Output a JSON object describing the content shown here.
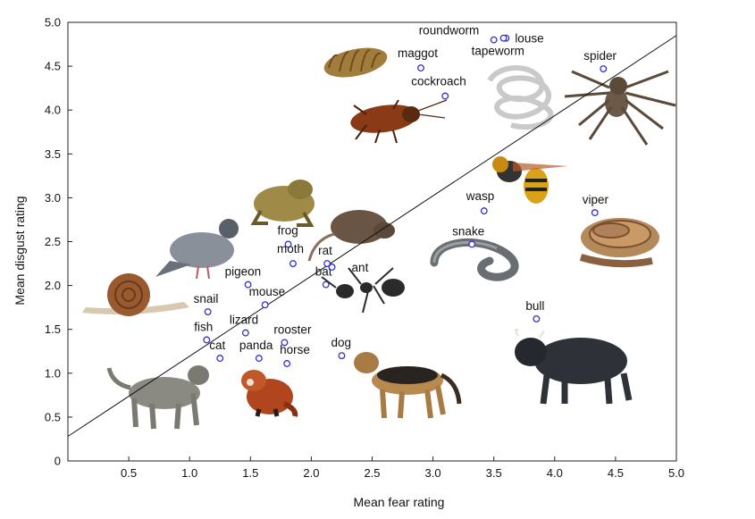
{
  "chart_data": {
    "type": "scatter",
    "title": "",
    "xlabel": "Mean fear rating",
    "ylabel": "Mean disgust rating",
    "xlim": [
      0,
      5
    ],
    "ylim": [
      0,
      5
    ],
    "x_ticks": [
      "0.5",
      "1.0",
      "1.5",
      "2.0",
      "2.5",
      "3.0",
      "3.5",
      "4.0",
      "4.5",
      "5.0"
    ],
    "y_ticks": [
      "0",
      "0.5",
      "1.0",
      "1.5",
      "2.0",
      "2.5",
      "3.0",
      "3.5",
      "4.0",
      "4.5",
      "5.0"
    ],
    "grid": false,
    "marker_color": "#2f2fd6",
    "trend_line": {
      "x": [
        0,
        5
      ],
      "y": [
        0.28,
        4.85
      ]
    },
    "points": [
      {
        "label": "roundworm",
        "x": 3.5,
        "y": 4.8
      },
      {
        "label": "louse",
        "x": 3.6,
        "y": 4.82
      },
      {
        "label": "tapeworm",
        "x": 3.58,
        "y": 4.82
      },
      {
        "label": "maggot",
        "x": 2.9,
        "y": 4.48
      },
      {
        "label": "spider",
        "x": 4.4,
        "y": 4.47
      },
      {
        "label": "cockroach",
        "x": 3.1,
        "y": 4.16
      },
      {
        "label": "wasp",
        "x": 3.42,
        "y": 2.85
      },
      {
        "label": "viper",
        "x": 4.33,
        "y": 2.83
      },
      {
        "label": "snake",
        "x": 3.32,
        "y": 2.47
      },
      {
        "label": "frog",
        "x": 1.81,
        "y": 2.47
      },
      {
        "label": "rat",
        "x": 2.13,
        "y": 2.25
      },
      {
        "label": "moth",
        "x": 1.85,
        "y": 2.25
      },
      {
        "label": "bat",
        "x": 2.12,
        "y": 2.01
      },
      {
        "label": "pigeon",
        "x": 1.48,
        "y": 2.01
      },
      {
        "label": "ant",
        "x": 2.17,
        "y": 2.21
      },
      {
        "label": "mouse",
        "x": 1.62,
        "y": 1.78
      },
      {
        "label": "snail",
        "x": 1.15,
        "y": 1.7
      },
      {
        "label": "bull",
        "x": 3.85,
        "y": 1.62
      },
      {
        "label": "lizard",
        "x": 1.46,
        "y": 1.46
      },
      {
        "label": "fish",
        "x": 1.14,
        "y": 1.38
      },
      {
        "label": "rooster",
        "x": 1.78,
        "y": 1.35
      },
      {
        "label": "dog",
        "x": 2.25,
        "y": 1.2
      },
      {
        "label": "cat",
        "x": 1.25,
        "y": 1.17
      },
      {
        "label": "panda",
        "x": 1.57,
        "y": 1.17
      },
      {
        "label": "horse",
        "x": 1.8,
        "y": 1.11
      }
    ]
  }
}
